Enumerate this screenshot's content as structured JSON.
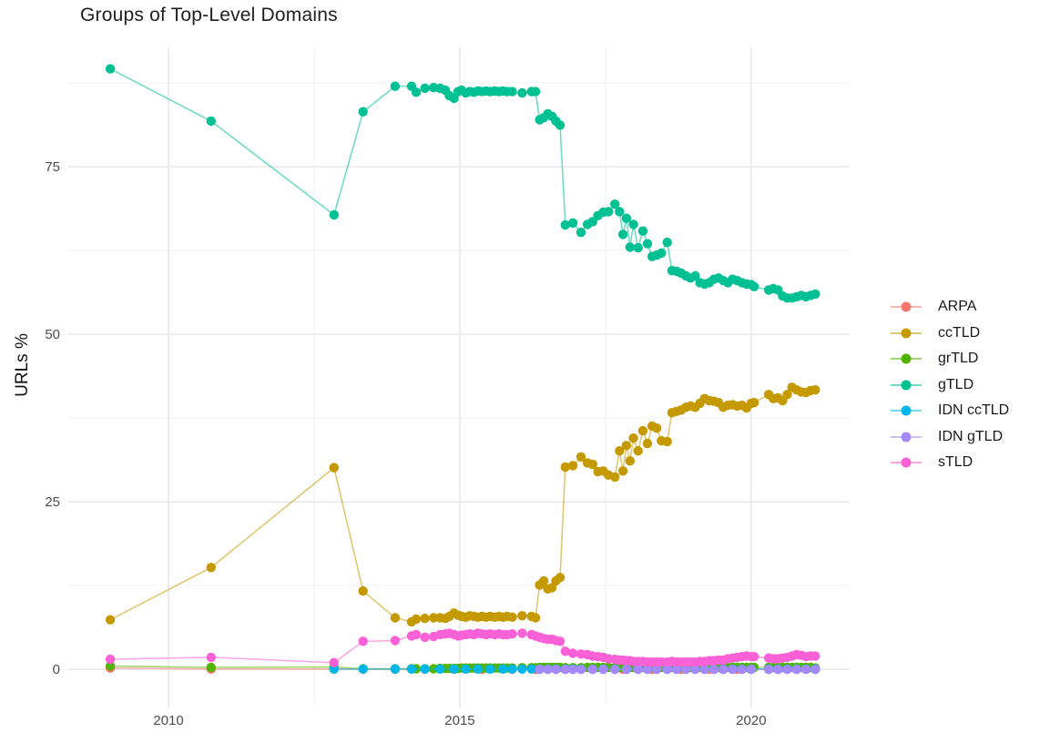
{
  "chart_data": {
    "type": "line",
    "title": "Groups of Top-Level Domains",
    "xlabel": "",
    "ylabel": "URLs %",
    "grid": true,
    "legend_position": "right",
    "xlim": [
      2008.28,
      2021.69
    ],
    "ylim": [
      -5,
      92.8
    ],
    "x_ticks": [
      {
        "label": "2010",
        "value": 2010
      },
      {
        "label": "2015",
        "value": 2015
      },
      {
        "label": "2020",
        "value": 2020
      }
    ],
    "y_ticks": [
      {
        "label": "0",
        "value": 0
      },
      {
        "label": "25",
        "value": 25
      },
      {
        "label": "50",
        "value": 50
      },
      {
        "label": "75",
        "value": 75
      }
    ],
    "x_minor": [
      2012.5,
      2017.5
    ],
    "y_minor": [
      12.5,
      37.5,
      62.5,
      87.5
    ],
    "colors": {
      "major_grid": "#e6e6e6",
      "minor_grid": "#f1f1f1",
      "tick_label": "#4d4d4d",
      "title_text": "#1f1f1f"
    },
    "series": [
      {
        "name": "ARPA",
        "color": "#F8766D",
        "x": [
          2009.0,
          2010.73,
          2012.84,
          2013.34,
          2013.89,
          2014.4,
          2014.9,
          2015.38,
          2015.9,
          2016.3,
          2016.81,
          2017.28,
          2017.8,
          2018.3,
          2018.8,
          2019.28,
          2019.76,
          2020.3,
          2020.78,
          2021.1
        ],
        "y": [
          0.2,
          0.05,
          0.05,
          0.02,
          0.02,
          0.02,
          0.02,
          0.02,
          0.02,
          0.02,
          0.02,
          0.02,
          0.02,
          0.02,
          0.02,
          0.02,
          0.02,
          0.02,
          0.02,
          0.02
        ]
      },
      {
        "name": "ccTLD",
        "color": "#C49A00",
        "x": [
          2009.0,
          2010.73,
          2012.84,
          2013.34,
          2013.89,
          2014.17,
          2014.25,
          2014.4,
          2014.55,
          2014.66,
          2014.75,
          2014.82,
          2014.9,
          2014.97,
          2015.03,
          2015.1,
          2015.17,
          2015.24,
          2015.31,
          2015.38,
          2015.45,
          2015.52,
          2015.6,
          2015.67,
          2015.74,
          2015.81,
          2015.9,
          2016.07,
          2016.23,
          2016.3,
          2016.37,
          2016.44,
          2016.51,
          2016.58,
          2016.65,
          2016.72,
          2016.81,
          2016.94,
          2017.08,
          2017.19,
          2017.28,
          2017.37,
          2017.46,
          2017.55,
          2017.66,
          2017.74,
          2017.8,
          2017.86,
          2017.92,
          2017.98,
          2018.06,
          2018.14,
          2018.22,
          2018.3,
          2018.38,
          2018.46,
          2018.56,
          2018.64,
          2018.72,
          2018.8,
          2018.88,
          2018.96,
          2019.04,
          2019.12,
          2019.2,
          2019.28,
          2019.36,
          2019.44,
          2019.52,
          2019.6,
          2019.68,
          2019.76,
          2019.84,
          2019.92,
          2020.0,
          2020.05,
          2020.3,
          2020.38,
          2020.46,
          2020.54,
          2020.62,
          2020.7,
          2020.78,
          2020.86,
          2020.94,
          2021.02,
          2021.1
        ],
        "y": [
          7.4,
          15.2,
          30.1,
          11.7,
          7.7,
          7.1,
          7.5,
          7.6,
          7.7,
          7.7,
          7.6,
          7.9,
          8.4,
          8.1,
          7.9,
          7.8,
          8.0,
          7.9,
          7.8,
          7.9,
          7.8,
          7.9,
          7.8,
          7.9,
          7.8,
          7.9,
          7.8,
          8.0,
          7.9,
          7.7,
          12.6,
          13.2,
          12.0,
          12.2,
          13.2,
          13.7,
          30.2,
          30.4,
          31.7,
          30.8,
          30.6,
          29.5,
          29.6,
          29.0,
          28.7,
          32.6,
          29.6,
          33.4,
          31.1,
          34.5,
          32.6,
          35.6,
          33.7,
          36.3,
          36.0,
          34.1,
          34.0,
          38.3,
          38.5,
          38.7,
          39.1,
          39.3,
          39.1,
          39.7,
          40.4,
          40.1,
          40.0,
          39.8,
          39.1,
          39.4,
          39.5,
          39.3,
          39.4,
          39.0,
          39.7,
          39.8,
          41.0,
          40.4,
          40.5,
          40.1,
          41.0,
          42.1,
          41.7,
          41.4,
          41.3,
          41.6,
          41.7
        ]
      },
      {
        "name": "grTLD",
        "color": "#53B400",
        "x": [
          2009.0,
          2010.73,
          2012.84,
          2013.34,
          2013.89,
          2014.17,
          2014.25,
          2014.4,
          2014.55,
          2014.66,
          2014.75,
          2014.82,
          2014.9,
          2014.97,
          2015.03,
          2015.1,
          2015.17,
          2015.24,
          2015.31,
          2015.38,
          2015.45,
          2015.52,
          2015.6,
          2015.67,
          2015.74,
          2015.81,
          2015.9,
          2016.07,
          2016.23,
          2016.3,
          2016.37,
          2016.44,
          2016.51,
          2016.58,
          2016.65,
          2016.72,
          2016.81,
          2016.94,
          2017.08,
          2017.19,
          2017.28,
          2017.37,
          2017.46,
          2017.55,
          2017.66,
          2017.74,
          2017.8,
          2017.86,
          2017.92,
          2017.98,
          2018.06,
          2018.14,
          2018.22,
          2018.3,
          2018.38,
          2018.46,
          2018.56,
          2018.64,
          2018.72,
          2018.8,
          2018.88,
          2018.96,
          2019.04,
          2019.12,
          2019.2,
          2019.28,
          2019.36,
          2019.44,
          2019.52,
          2019.6,
          2019.68,
          2019.76,
          2019.84,
          2019.92,
          2020.0,
          2020.05,
          2020.3,
          2020.38,
          2020.46,
          2020.54,
          2020.62,
          2020.7,
          2020.78,
          2020.86,
          2020.94,
          2021.02,
          2021.1
        ],
        "y": [
          0.5,
          0.3,
          0.35,
          0.1,
          0.1,
          0.1,
          0.1,
          0.1,
          0.1,
          0.15,
          0.15,
          0.15,
          0.15,
          0.15,
          0.2,
          0.2,
          0.2,
          0.2,
          0.2,
          0.2,
          0.2,
          0.2,
          0.2,
          0.2,
          0.2,
          0.2,
          0.2,
          0.25,
          0.25,
          0.25,
          0.3,
          0.3,
          0.3,
          0.3,
          0.3,
          0.3,
          0.25,
          0.25,
          0.25,
          0.3,
          0.3,
          0.3,
          0.3,
          0.3,
          0.3,
          0.3,
          0.3,
          0.3,
          0.3,
          0.3,
          0.3,
          0.3,
          0.3,
          0.3,
          0.3,
          0.3,
          0.3,
          0.3,
          0.3,
          0.3,
          0.3,
          0.3,
          0.3,
          0.3,
          0.3,
          0.3,
          0.3,
          0.3,
          0.3,
          0.3,
          0.3,
          0.3,
          0.3,
          0.3,
          0.3,
          0.3,
          0.3,
          0.3,
          0.3,
          0.3,
          0.3,
          0.3,
          0.3,
          0.3,
          0.3,
          0.3,
          0.2
        ]
      },
      {
        "name": "gTLD",
        "color": "#00C094",
        "x": [
          2009.0,
          2010.73,
          2012.84,
          2013.34,
          2013.89,
          2014.17,
          2014.25,
          2014.4,
          2014.55,
          2014.66,
          2014.75,
          2014.82,
          2014.9,
          2014.97,
          2015.03,
          2015.1,
          2015.17,
          2015.24,
          2015.31,
          2015.38,
          2015.45,
          2015.52,
          2015.6,
          2015.67,
          2015.74,
          2015.81,
          2015.9,
          2016.07,
          2016.23,
          2016.3,
          2016.37,
          2016.44,
          2016.51,
          2016.58,
          2016.65,
          2016.72,
          2016.81,
          2016.94,
          2017.08,
          2017.19,
          2017.28,
          2017.37,
          2017.46,
          2017.55,
          2017.66,
          2017.74,
          2017.8,
          2017.86,
          2017.92,
          2017.98,
          2018.06,
          2018.14,
          2018.22,
          2018.3,
          2018.38,
          2018.46,
          2018.56,
          2018.64,
          2018.72,
          2018.8,
          2018.88,
          2018.96,
          2019.04,
          2019.12,
          2019.2,
          2019.28,
          2019.36,
          2019.44,
          2019.52,
          2019.6,
          2019.68,
          2019.76,
          2019.84,
          2019.92,
          2020.0,
          2020.05,
          2020.3,
          2020.38,
          2020.46,
          2020.54,
          2020.62,
          2020.7,
          2020.78,
          2020.86,
          2020.94,
          2021.02,
          2021.1
        ],
        "y": [
          89.6,
          81.8,
          67.8,
          83.2,
          87.0,
          87.0,
          86.1,
          86.7,
          86.8,
          86.7,
          86.4,
          85.6,
          85.2,
          86.2,
          86.4,
          86.0,
          86.2,
          86.1,
          86.3,
          86.2,
          86.3,
          86.2,
          86.3,
          86.2,
          86.3,
          86.2,
          86.2,
          86.0,
          86.2,
          86.2,
          82.0,
          82.3,
          82.9,
          82.5,
          81.8,
          81.2,
          66.3,
          66.6,
          65.2,
          66.4,
          66.8,
          67.7,
          68.2,
          68.3,
          69.4,
          68.3,
          64.9,
          67.3,
          63.0,
          66.4,
          62.9,
          65.4,
          63.5,
          61.6,
          61.8,
          62.1,
          63.7,
          59.5,
          59.4,
          59.1,
          58.7,
          58.4,
          58.7,
          57.7,
          57.5,
          57.7,
          58.2,
          58.4,
          58.0,
          57.7,
          58.2,
          58.0,
          57.7,
          57.5,
          57.4,
          57.1,
          56.6,
          56.8,
          56.6,
          55.7,
          55.4,
          55.4,
          55.6,
          55.8,
          55.6,
          55.8,
          56.0
        ]
      },
      {
        "name": "IDN ccTLD",
        "color": "#00B6EB",
        "x": [
          2012.84,
          2013.34,
          2013.89,
          2014.17,
          2014.4,
          2014.66,
          2014.9,
          2015.1,
          2015.31,
          2015.52,
          2015.74,
          2015.9,
          2016.07,
          2016.23,
          2016.37,
          2016.51,
          2016.65,
          2016.81,
          2016.94,
          2017.08,
          2017.28,
          2017.46,
          2017.66,
          2017.86,
          2018.06,
          2018.22,
          2018.38,
          2018.56,
          2018.72,
          2018.88,
          2019.04,
          2019.2,
          2019.36,
          2019.52,
          2019.68,
          2019.84,
          2020.0,
          2020.3,
          2020.46,
          2020.62,
          2020.78,
          2020.94,
          2021.1
        ],
        "y": [
          0.05,
          0.05,
          0.05,
          0.05,
          0.05,
          0.05,
          0.05,
          0.05,
          0.05,
          0.05,
          0.05,
          0.05,
          0.05,
          0.05,
          0.05,
          0.05,
          0.05,
          0.05,
          0.05,
          0.05,
          0.05,
          0.05,
          0.05,
          0.05,
          0.05,
          0.05,
          0.05,
          0.05,
          0.05,
          0.05,
          0.05,
          0.05,
          0.05,
          0.05,
          0.05,
          0.05,
          0.05,
          0.05,
          0.05,
          0.05,
          0.05,
          0.05,
          0.05
        ]
      },
      {
        "name": "IDN gTLD",
        "color": "#A58AFF",
        "x": [
          2016.37,
          2016.51,
          2016.65,
          2016.81,
          2016.94,
          2017.08,
          2017.28,
          2017.46,
          2017.66,
          2017.86,
          2018.06,
          2018.22,
          2018.38,
          2018.56,
          2018.72,
          2018.88,
          2019.04,
          2019.2,
          2019.36,
          2019.52,
          2019.68,
          2019.84,
          2020.0,
          2020.3,
          2020.46,
          2020.62,
          2020.78,
          2020.94,
          2021.1
        ],
        "y": [
          0.0,
          0.0,
          0.0,
          0.0,
          0.0,
          0.0,
          0.0,
          0.0,
          0.0,
          0.0,
          0.0,
          0.0,
          0.0,
          0.0,
          0.0,
          0.0,
          0.0,
          0.0,
          0.0,
          0.0,
          0.0,
          0.0,
          0.0,
          0.0,
          0.0,
          0.0,
          0.0,
          0.0,
          0.0
        ]
      },
      {
        "name": "sTLD",
        "color": "#FB61D7",
        "x": [
          2009.0,
          2010.73,
          2012.84,
          2013.34,
          2013.89,
          2014.17,
          2014.25,
          2014.4,
          2014.55,
          2014.66,
          2014.75,
          2014.82,
          2014.9,
          2014.97,
          2015.03,
          2015.1,
          2015.17,
          2015.24,
          2015.31,
          2015.38,
          2015.45,
          2015.52,
          2015.6,
          2015.67,
          2015.74,
          2015.81,
          2015.9,
          2016.07,
          2016.23,
          2016.3,
          2016.37,
          2016.44,
          2016.51,
          2016.58,
          2016.65,
          2016.72,
          2016.81,
          2016.94,
          2017.08,
          2017.19,
          2017.28,
          2017.37,
          2017.46,
          2017.55,
          2017.66,
          2017.74,
          2017.8,
          2017.86,
          2017.92,
          2017.98,
          2018.06,
          2018.14,
          2018.22,
          2018.3,
          2018.38,
          2018.46,
          2018.56,
          2018.64,
          2018.72,
          2018.8,
          2018.88,
          2018.96,
          2019.04,
          2019.12,
          2019.2,
          2019.28,
          2019.36,
          2019.44,
          2019.52,
          2019.6,
          2019.68,
          2019.76,
          2019.84,
          2019.92,
          2020.0,
          2020.05,
          2020.3,
          2020.38,
          2020.46,
          2020.54,
          2020.62,
          2020.7,
          2020.78,
          2020.86,
          2020.94,
          2021.02,
          2021.1
        ],
        "y": [
          1.5,
          1.8,
          1.0,
          4.2,
          4.3,
          5.0,
          5.2,
          4.8,
          4.9,
          5.2,
          5.3,
          5.4,
          5.2,
          5.0,
          5.1,
          5.2,
          5.3,
          5.2,
          5.4,
          5.3,
          5.2,
          5.3,
          5.2,
          5.3,
          5.2,
          5.2,
          5.3,
          5.4,
          5.2,
          5.0,
          4.8,
          4.6,
          4.5,
          4.5,
          4.3,
          4.2,
          2.7,
          2.4,
          2.3,
          2.2,
          2.0,
          1.9,
          1.8,
          1.6,
          1.5,
          1.4,
          1.4,
          1.3,
          1.3,
          1.2,
          1.2,
          1.2,
          1.1,
          1.1,
          1.1,
          1.1,
          1.1,
          1.2,
          1.1,
          1.1,
          1.1,
          1.1,
          1.1,
          1.2,
          1.2,
          1.3,
          1.3,
          1.4,
          1.4,
          1.6,
          1.7,
          1.8,
          1.9,
          2.0,
          1.9,
          1.9,
          1.7,
          1.6,
          1.6,
          1.7,
          1.8,
          2.0,
          2.2,
          2.1,
          1.9,
          2.0,
          2.0
        ]
      }
    ]
  }
}
